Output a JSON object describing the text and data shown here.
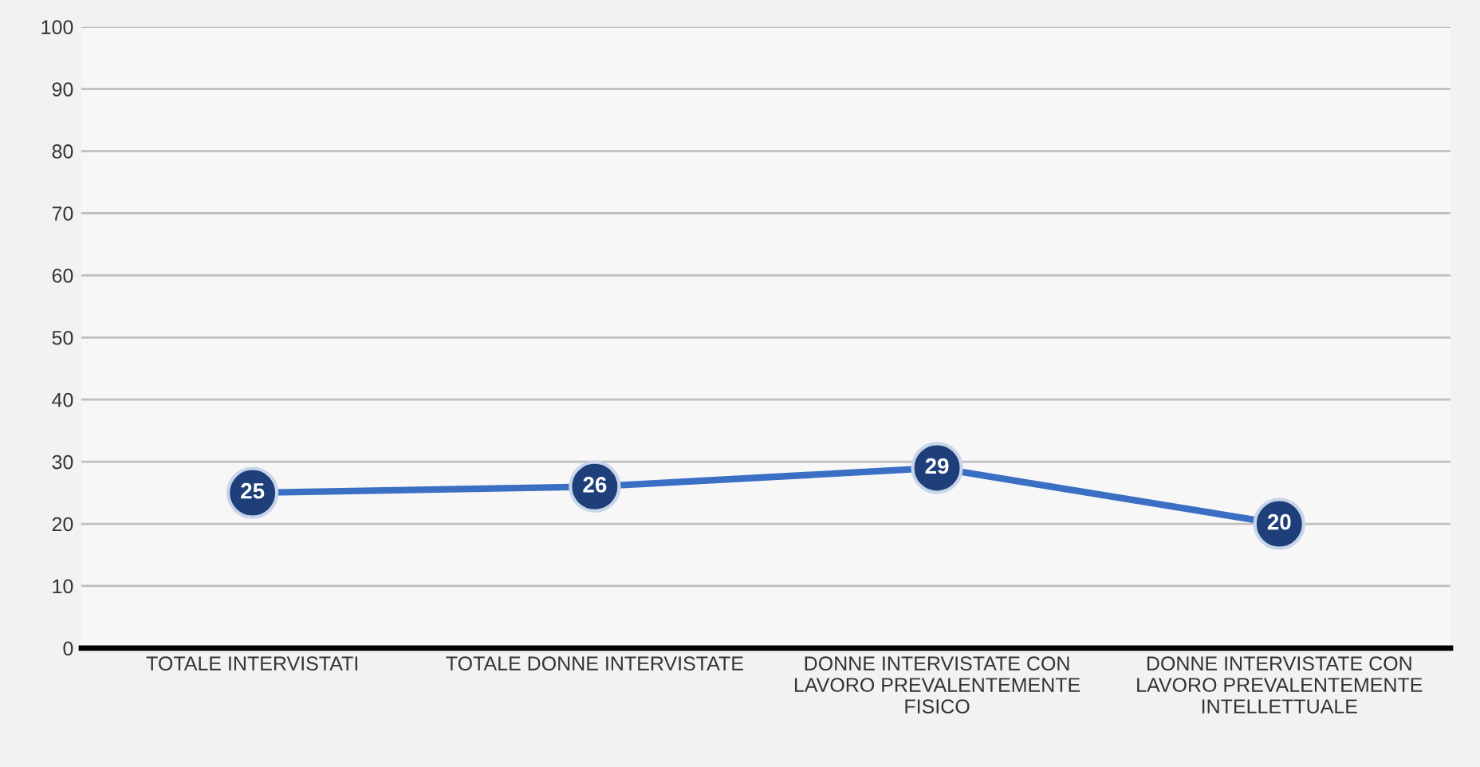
{
  "chart_data": {
    "type": "line",
    "categories": [
      "TOTALE INTERVISTATI",
      "TOTALE DONNE INTERVISTATE",
      "DONNE INTERVISTATE CON LAVORO PREVALENTEMENTE FISICO",
      "DONNE INTERVISTATE CON LAVORO PREVALENTEMENTE INTELLETTUALE"
    ],
    "series": [
      {
        "color": "#3b6fc4",
        "values": [
          25,
          26,
          29,
          20
        ]
      }
    ],
    "ylim": [
      0,
      100
    ],
    "yticks": [
      0,
      10,
      20,
      30,
      40,
      50,
      60,
      70,
      80,
      90,
      100
    ],
    "grid": "y",
    "marker": "circle",
    "line_style": "solid",
    "data_labels": true,
    "legend": false
  }
}
